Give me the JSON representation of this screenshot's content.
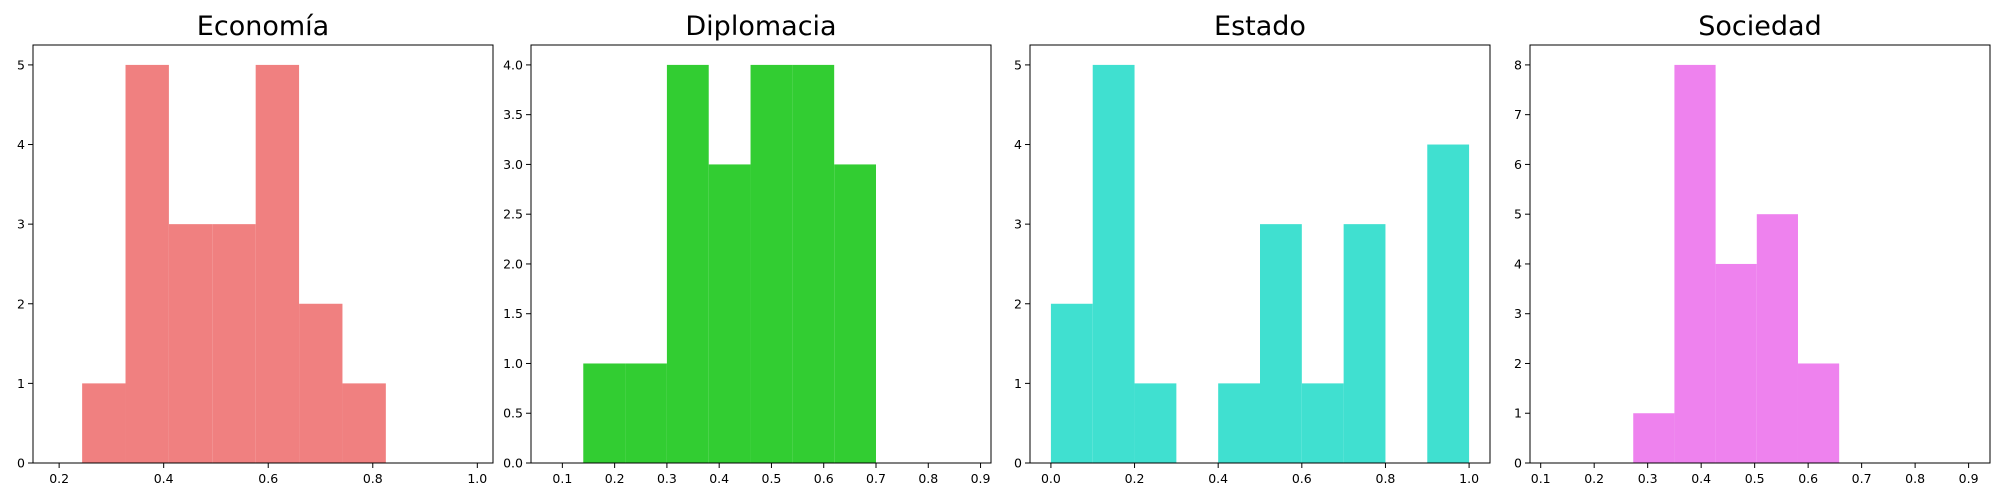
{
  "chart_data": [
    {
      "type": "histogram",
      "title": "Economía",
      "color": "#F08080",
      "xlim": [
        0.15,
        1.03
      ],
      "ylim": [
        0,
        5.25
      ],
      "xticks": [
        0.2,
        0.4,
        0.6,
        0.8,
        1.0
      ],
      "xtick_labels": [
        "0.2",
        "0.4",
        "0.6",
        "0.8",
        "1.0"
      ],
      "yticks": [
        0,
        1,
        2,
        3,
        4,
        5
      ],
      "ytick_labels": [
        "0",
        "1",
        "2",
        "3",
        "4",
        "5"
      ],
      "bin_edges": [
        0.244,
        0.327,
        0.41,
        0.493,
        0.576,
        0.659,
        0.742,
        0.825
      ],
      "counts": [
        1,
        5,
        3,
        3,
        5,
        2,
        1
      ]
    },
    {
      "type": "histogram",
      "title": "Diplomacia",
      "color": "#32CD32",
      "xlim": [
        0.04,
        0.92
      ],
      "ylim": [
        0,
        4.2
      ],
      "xticks": [
        0.1,
        0.2,
        0.3,
        0.4,
        0.5,
        0.6,
        0.7,
        0.8,
        0.9
      ],
      "xtick_labels": [
        "0.1",
        "0.2",
        "0.3",
        "0.4",
        "0.5",
        "0.6",
        "0.7",
        "0.8",
        "0.9"
      ],
      "yticks": [
        0.0,
        0.5,
        1.0,
        1.5,
        2.0,
        2.5,
        3.0,
        3.5,
        4.0
      ],
      "ytick_labels": [
        "0.0",
        "0.5",
        "1.0",
        "1.5",
        "2.0",
        "2.5",
        "3.0",
        "3.5",
        "4.0"
      ],
      "bin_edges": [
        0.14,
        0.22,
        0.3,
        0.38,
        0.46,
        0.54,
        0.62,
        0.7
      ],
      "counts": [
        1,
        1,
        4,
        3,
        4,
        4,
        3
      ]
    },
    {
      "type": "histogram",
      "title": "Estado",
      "color": "#40E0D0",
      "xlim": [
        -0.05,
        1.05
      ],
      "ylim": [
        0,
        5.25
      ],
      "xticks": [
        0.0,
        0.2,
        0.4,
        0.6,
        0.8,
        1.0
      ],
      "xtick_labels": [
        "0.0",
        "0.2",
        "0.4",
        "0.6",
        "0.8",
        "1.0"
      ],
      "yticks": [
        0,
        1,
        2,
        3,
        4,
        5
      ],
      "ytick_labels": [
        "0",
        "1",
        "2",
        "3",
        "4",
        "5"
      ],
      "bin_edges": [
        0.0,
        0.1,
        0.2,
        0.3,
        0.4,
        0.5,
        0.6,
        0.7,
        0.8,
        0.9,
        1.0
      ],
      "counts": [
        2,
        5,
        1,
        0,
        1,
        3,
        1,
        3,
        0,
        4
      ]
    },
    {
      "type": "histogram",
      "title": "Sociedad",
      "color": "#EE82EE",
      "xlim": [
        0.08,
        0.94
      ],
      "ylim": [
        0,
        8.4
      ],
      "xticks": [
        0.1,
        0.2,
        0.3,
        0.4,
        0.5,
        0.6,
        0.7,
        0.8,
        0.9
      ],
      "xtick_labels": [
        "0.1",
        "0.2",
        "0.3",
        "0.4",
        "0.5",
        "0.6",
        "0.7",
        "0.8",
        "0.9"
      ],
      "yticks": [
        0,
        1,
        2,
        3,
        4,
        5,
        6,
        7,
        8
      ],
      "ytick_labels": [
        "0",
        "1",
        "2",
        "3",
        "4",
        "5",
        "6",
        "7",
        "8"
      ],
      "bin_edges": [
        0.273,
        0.35,
        0.427,
        0.504,
        0.581,
        0.658
      ],
      "counts": [
        1,
        8,
        4,
        5,
        2
      ]
    }
  ]
}
